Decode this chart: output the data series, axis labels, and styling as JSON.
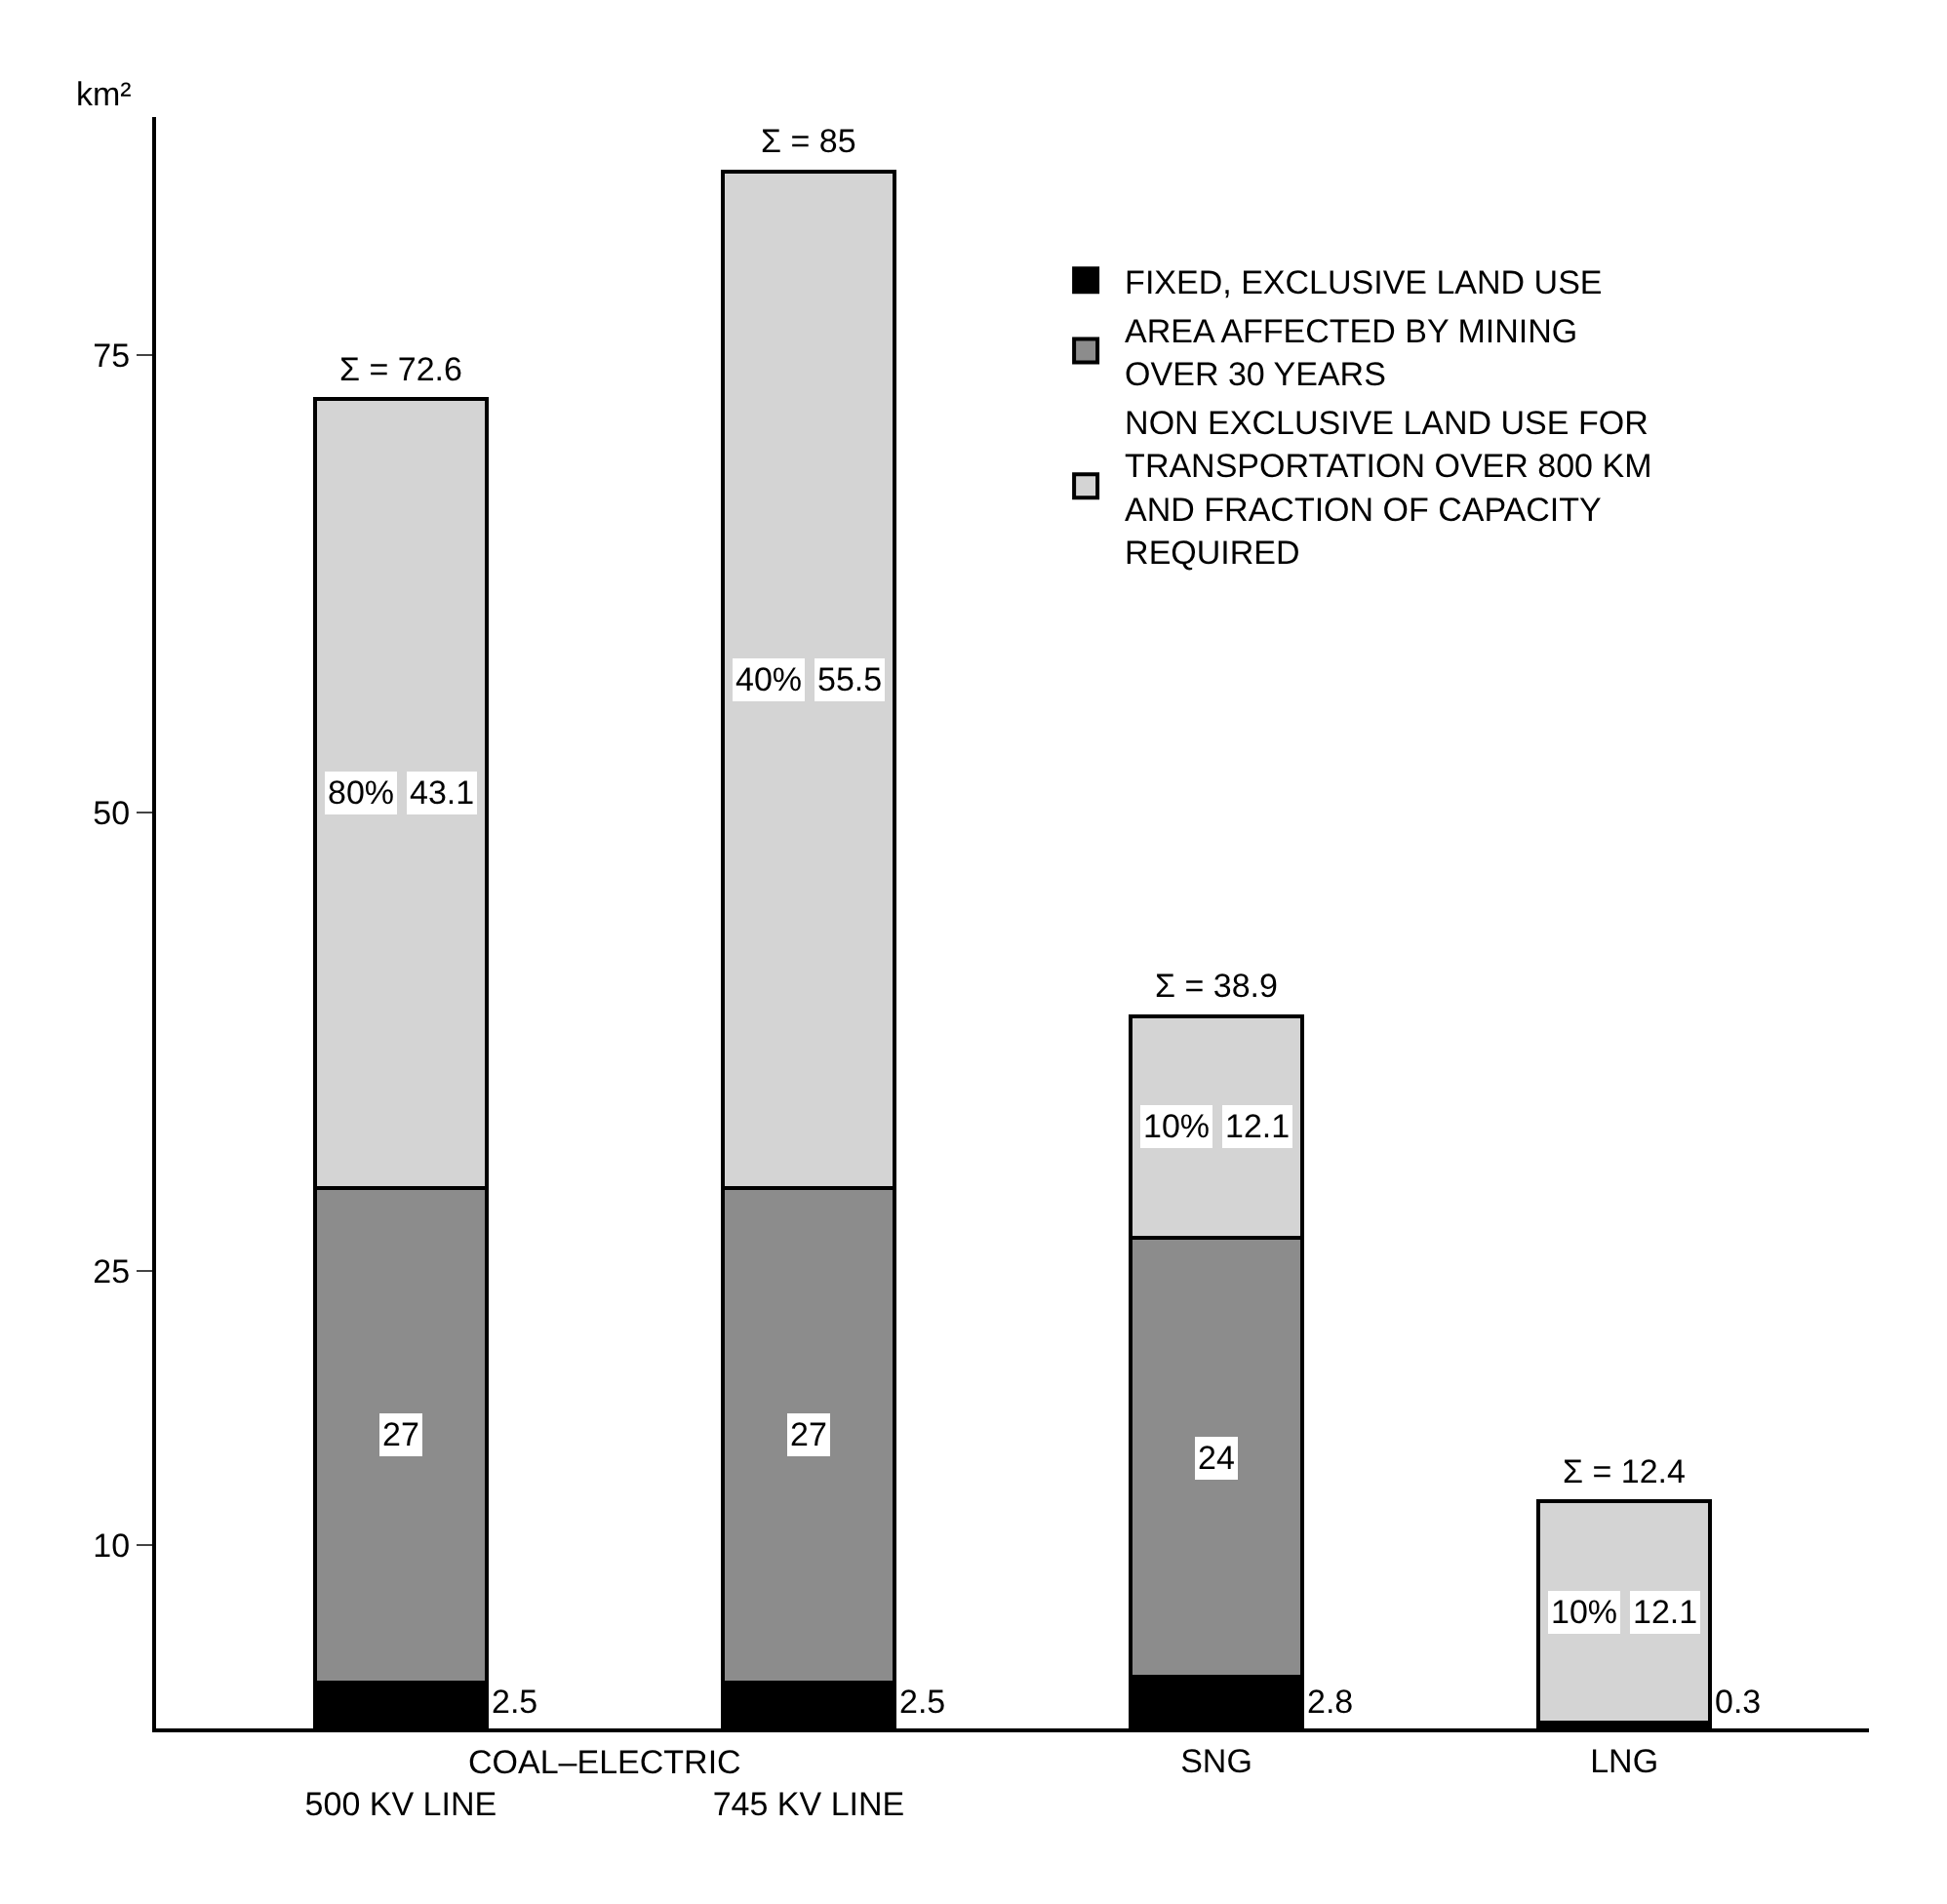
{
  "chart_data": {
    "type": "bar",
    "stacked": true,
    "ylabel": "km²",
    "categories": [
      "500 KV LINE",
      "745 KV LINE",
      "SNG",
      "LNG"
    ],
    "series": [
      {
        "name": "FIXED, EXCLUSIVE LAND USE",
        "color": "#000000",
        "values": [
          2.5,
          2.5,
          2.8,
          0.3
        ]
      },
      {
        "name": "AREA AFFECTED BY MINING OVER 30 YEARS",
        "color": "#8c8c8c",
        "values": [
          27,
          27,
          24,
          null
        ]
      },
      {
        "name": "NON EXCLUSIVE LAND USE FOR TRANSPORTATION OVER 800 KM AND FRACTION OF CAPACITY REQUIRED",
        "color": "#d4d4d4",
        "values": [
          43.1,
          55.5,
          12.1,
          12.1
        ]
      }
    ],
    "data_labels": true,
    "totals": [
      "Σ = 72.6",
      "Σ = 85",
      "Σ = 38.9",
      "Σ = 12.4"
    ],
    "annotations": [
      "COAL–ELECTRIC",
      "80%",
      "40%",
      "10%",
      "10%"
    ],
    "ylim": [
      0,
      88
    ],
    "yticks": [
      10,
      25,
      50,
      75
    ],
    "grid": false,
    "legend": "top right"
  }
}
